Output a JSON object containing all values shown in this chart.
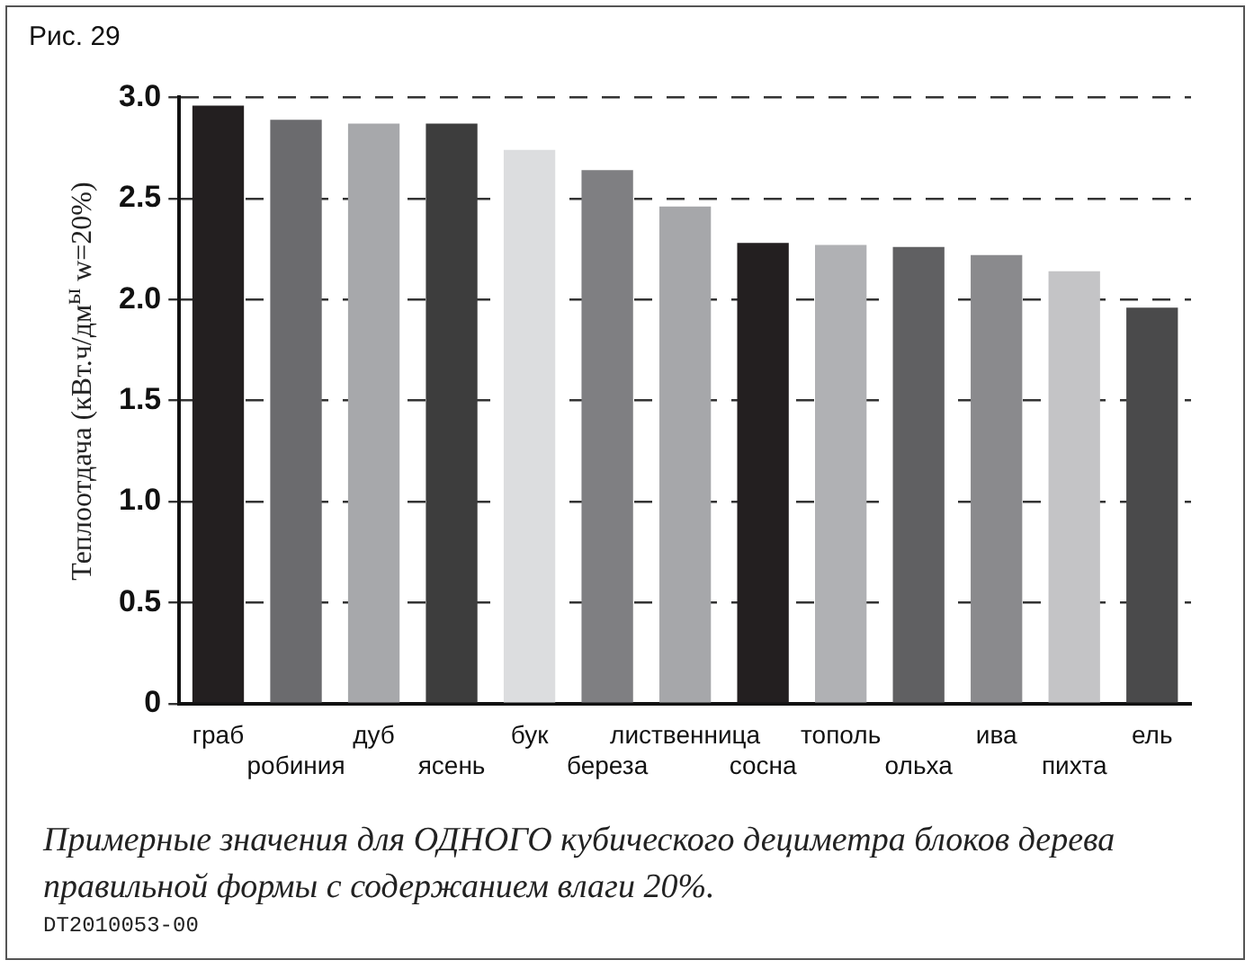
{
  "chart_data": {
    "type": "bar",
    "title": "Рис. 29",
    "ylabel": "Теплоотдача (кВт.ч/дм$^{ы}$ w=20%)",
    "categories": [
      "граб",
      "робиния",
      "дуб",
      "ясень",
      "бук",
      "береза",
      "лиственница",
      "сосна",
      "тополь",
      "ольха",
      "ива",
      "пихта",
      "ель"
    ],
    "values": [
      2.96,
      2.89,
      2.87,
      2.87,
      2.74,
      2.64,
      2.46,
      2.28,
      2.27,
      2.26,
      2.22,
      2.14,
      1.96
    ],
    "colors": [
      "#231f20",
      "#6b6b6e",
      "#a7a8ab",
      "#3d3d3d",
      "#dcdddf",
      "#7f7f82",
      "#a6a7aa",
      "#231f20",
      "#b0b1b4",
      "#606062",
      "#8a8a8d",
      "#c4c4c6",
      "#4a4a4b"
    ],
    "ylim": [
      0,
      3.0
    ],
    "yticks": [
      0,
      {
        "value": 0.5,
        "label": "0.5"
      },
      {
        "value": 1,
        "label": "1.0"
      },
      {
        "value": 1.5,
        "label": "1.5"
      },
      {
        "value": 2,
        "label": "2.0"
      },
      {
        "value": 2.5,
        "label": "2.5"
      },
      {
        "value": 3,
        "label": "3.0"
      }
    ],
    "grid": "y",
    "annotations": [
      "Примерные значения для ОДНОГО кубического дециметра блоков дерева правильной формы с содержанием влаги 20%.",
      "DT2010053-00"
    ]
  }
}
